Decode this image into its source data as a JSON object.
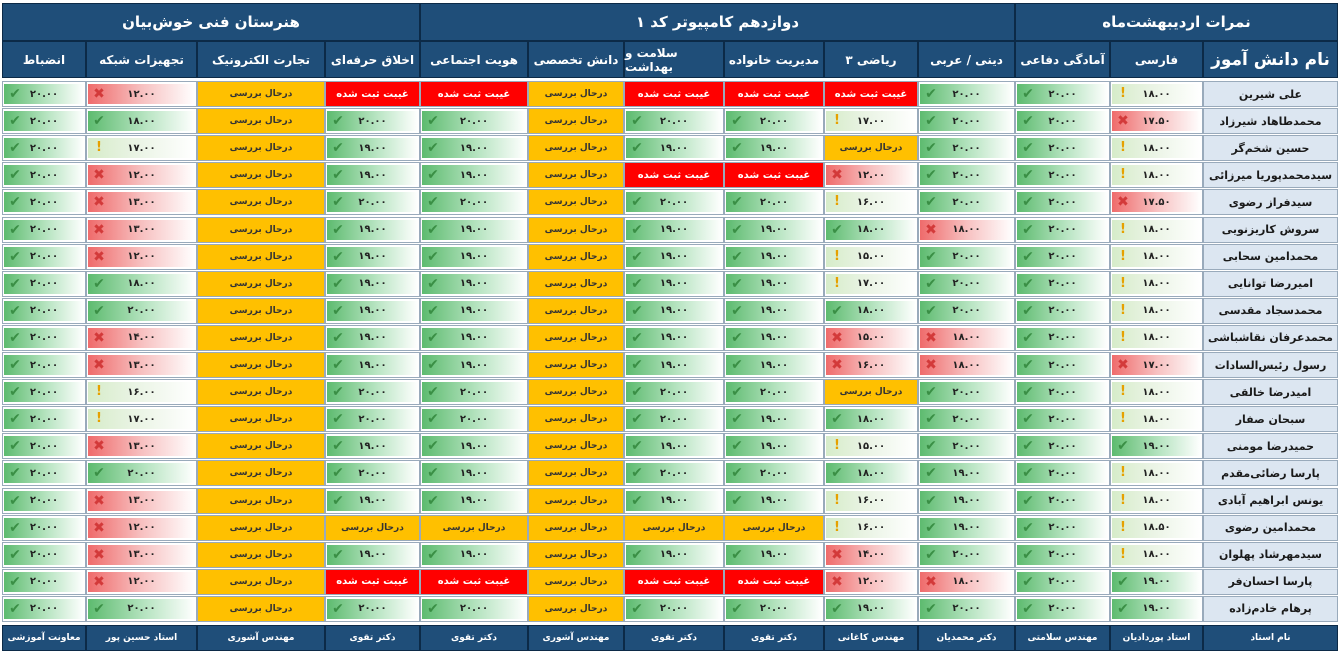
{
  "group_headers": [
    "نمرات اردیبهشت‌ماه",
    "دوازدهم کامپیوتر کد ۱",
    "هنرستان فنی خوش‌بیان"
  ],
  "name_header": "نام دانش آموز",
  "columns": [
    "فارسی",
    "آمادگی دفاعی",
    "دینی / عربی",
    "ریاضی ۳",
    "مدیریت خانواده",
    "سلامت و بهداشت",
    "دانش تخصصی",
    "هویت اجتماعی",
    "اخلاق حرفه‌ای",
    "تجارت الکترونیک",
    "تجهیزات شبکه",
    "انضباط"
  ],
  "teacher_label": "نام استاد",
  "teachers": [
    "استاد پوردادیان",
    "مهندس سلامتی",
    "دکتر محمدیان",
    "مهندس کاغانی",
    "دکتر تقوی",
    "دکتر تقوی",
    "مهندس آشوری",
    "دکتر تقوی",
    "دکتر تقوی",
    "مهندس آشوری",
    "استاد حسین پور",
    "معاونت آموزشی"
  ],
  "labels": {
    "pending": "درحال بررسی",
    "absent": "غیبت ثبت شده"
  },
  "icon_names": {
    "ok": "check-icon",
    "x": "x-icon",
    "w": "warning-icon"
  },
  "status_colors": {
    "pending": "#ffc000",
    "absent": "#ff0000",
    "good": "#5dbb6f",
    "bad": "#ef6b6b"
  },
  "students": [
    {
      "name": "علی شیرین",
      "g": [
        "۱۸.۰۰|w",
        "۲۰.۰۰|ok",
        "۲۰.۰۰|ok",
        "A",
        "A",
        "A",
        "P",
        "A",
        "A",
        "P",
        "۱۲.۰۰|x",
        "۲۰.۰۰|ok"
      ]
    },
    {
      "name": "محمدطاهاد شیرزاد",
      "g": [
        "۱۷.۵۰|x",
        "۲۰.۰۰|ok",
        "۲۰.۰۰|ok",
        "۱۷.۰۰|w",
        "۲۰.۰۰|ok",
        "۲۰.۰۰|ok",
        "P",
        "۲۰.۰۰|ok",
        "۲۰.۰۰|ok",
        "P",
        "۱۸.۰۰|ok",
        "۲۰.۰۰|ok"
      ]
    },
    {
      "name": "حسین شخم‌گر",
      "g": [
        "۱۸.۰۰|w",
        "۲۰.۰۰|ok",
        "۲۰.۰۰|ok",
        "P",
        "۱۹.۰۰|ok",
        "۱۹.۰۰|ok",
        "P",
        "۱۹.۰۰|ok",
        "۱۹.۰۰|ok",
        "P",
        "۱۷.۰۰|w",
        "۲۰.۰۰|ok"
      ]
    },
    {
      "name": "سیدمحمدپوریا میرزائی",
      "g": [
        "۱۸.۰۰|w",
        "۲۰.۰۰|ok",
        "۲۰.۰۰|ok",
        "۱۲.۰۰|x",
        "A",
        "A",
        "P",
        "۱۹.۰۰|ok",
        "۱۹.۰۰|ok",
        "P",
        "۱۲.۰۰|x",
        "۲۰.۰۰|ok"
      ]
    },
    {
      "name": "سیدفراز رضوی",
      "g": [
        "۱۷.۵۰|x",
        "۲۰.۰۰|ok",
        "۲۰.۰۰|ok",
        "۱۶.۰۰|w",
        "۲۰.۰۰|ok",
        "۲۰.۰۰|ok",
        "P",
        "۲۰.۰۰|ok",
        "۲۰.۰۰|ok",
        "P",
        "۱۳.۰۰|x",
        "۲۰.۰۰|ok"
      ]
    },
    {
      "name": "سروش کاریزنویی",
      "g": [
        "۱۸.۰۰|w",
        "۲۰.۰۰|ok",
        "۱۸.۰۰|x",
        "۱۸.۰۰|ok",
        "۱۹.۰۰|ok",
        "۱۹.۰۰|ok",
        "P",
        "۱۹.۰۰|ok",
        "۱۹.۰۰|ok",
        "P",
        "۱۳.۰۰|x",
        "۲۰.۰۰|ok"
      ]
    },
    {
      "name": "محمدامین سحابی",
      "g": [
        "۱۸.۰۰|w",
        "۲۰.۰۰|ok",
        "۲۰.۰۰|ok",
        "۱۵.۰۰|w",
        "۱۹.۰۰|ok",
        "۱۹.۰۰|ok",
        "P",
        "۱۹.۰۰|ok",
        "۱۹.۰۰|ok",
        "P",
        "۱۲.۰۰|x",
        "۲۰.۰۰|ok"
      ]
    },
    {
      "name": "امیررضا توانایی",
      "g": [
        "۱۸.۰۰|w",
        "۲۰.۰۰|ok",
        "۲۰.۰۰|ok",
        "۱۷.۰۰|w",
        "۱۹.۰۰|ok",
        "۱۹.۰۰|ok",
        "P",
        "۱۹.۰۰|ok",
        "۱۹.۰۰|ok",
        "P",
        "۱۸.۰۰|ok",
        "۲۰.۰۰|ok"
      ]
    },
    {
      "name": "محمدسجاد مقدسی",
      "g": [
        "۱۸.۰۰|w",
        "۲۰.۰۰|ok",
        "۲۰.۰۰|ok",
        "۱۸.۰۰|ok",
        "۱۹.۰۰|ok",
        "۱۹.۰۰|ok",
        "P",
        "۱۹.۰۰|ok",
        "۱۹.۰۰|ok",
        "P",
        "۲۰.۰۰|ok",
        "۲۰.۰۰|ok"
      ]
    },
    {
      "name": "محمدعرفان نقاشباشی",
      "g": [
        "۱۸.۰۰|w",
        "۲۰.۰۰|ok",
        "۱۸.۰۰|x",
        "۱۵.۰۰|x",
        "۱۹.۰۰|ok",
        "۱۹.۰۰|ok",
        "P",
        "۱۹.۰۰|ok",
        "۱۹.۰۰|ok",
        "P",
        "۱۴.۰۰|x",
        "۲۰.۰۰|ok"
      ]
    },
    {
      "name": "رسول رئیس‌السادات",
      "g": [
        "۱۷.۰۰|x",
        "۲۰.۰۰|ok",
        "۱۸.۰۰|x",
        "۱۶.۰۰|x",
        "۱۹.۰۰|ok",
        "۱۹.۰۰|ok",
        "P",
        "۱۹.۰۰|ok",
        "۱۹.۰۰|ok",
        "P",
        "۱۳.۰۰|x",
        "۲۰.۰۰|ok"
      ]
    },
    {
      "name": "امیدرضا خالقی",
      "g": [
        "۱۸.۰۰|w",
        "۲۰.۰۰|ok",
        "۲۰.۰۰|ok",
        "P",
        "۲۰.۰۰|ok",
        "۲۰.۰۰|ok",
        "P",
        "۲۰.۰۰|ok",
        "۲۰.۰۰|ok",
        "P",
        "۱۶.۰۰|w",
        "۲۰.۰۰|ok"
      ]
    },
    {
      "name": "سبحان صفار",
      "g": [
        "۱۸.۰۰|w",
        "۲۰.۰۰|ok",
        "۲۰.۰۰|ok",
        "۱۸.۰۰|ok",
        "۱۹.۰۰|ok",
        "۲۰.۰۰|ok",
        "P",
        "۲۰.۰۰|ok",
        "۲۰.۰۰|ok",
        "P",
        "۱۷.۰۰|w",
        "۲۰.۰۰|ok"
      ]
    },
    {
      "name": "حمیدرضا مومنی",
      "g": [
        "۱۹.۰۰|ok",
        "۲۰.۰۰|ok",
        "۲۰.۰۰|ok",
        "۱۵.۰۰|w",
        "۱۹.۰۰|ok",
        "۱۹.۰۰|ok",
        "P",
        "۱۹.۰۰|ok",
        "۱۹.۰۰|ok",
        "P",
        "۱۳.۰۰|x",
        "۲۰.۰۰|ok"
      ]
    },
    {
      "name": "پارسا رضائی‌مقدم",
      "g": [
        "۱۸.۰۰|w",
        "۲۰.۰۰|ok",
        "۱۹.۰۰|ok",
        "۱۸.۰۰|ok",
        "۲۰.۰۰|ok",
        "۲۰.۰۰|ok",
        "P",
        "۱۹.۰۰|ok",
        "۲۰.۰۰|ok",
        "P",
        "۲۰.۰۰|ok",
        "۲۰.۰۰|ok"
      ]
    },
    {
      "name": "یونس ابراهیم آبادی",
      "g": [
        "۱۸.۰۰|w",
        "۲۰.۰۰|ok",
        "۱۹.۰۰|ok",
        "۱۶.۰۰|w",
        "۱۹.۰۰|ok",
        "۱۹.۰۰|ok",
        "P",
        "۱۹.۰۰|ok",
        "۱۹.۰۰|ok",
        "P",
        "۱۳.۰۰|x",
        "۲۰.۰۰|ok"
      ]
    },
    {
      "name": "محمدامین رضوی",
      "g": [
        "۱۸.۵۰|w",
        "۲۰.۰۰|ok",
        "۱۹.۰۰|ok",
        "۱۶.۰۰|w",
        "P",
        "P",
        "P",
        "P",
        "P",
        "P",
        "۱۲.۰۰|x",
        "۲۰.۰۰|ok"
      ]
    },
    {
      "name": "سیدمهرشاد پهلوان",
      "g": [
        "۱۸.۰۰|w",
        "۲۰.۰۰|ok",
        "۲۰.۰۰|ok",
        "۱۴.۰۰|x",
        "۱۹.۰۰|ok",
        "۱۹.۰۰|ok",
        "P",
        "۱۹.۰۰|ok",
        "۱۹.۰۰|ok",
        "P",
        "۱۳.۰۰|x",
        "۲۰.۰۰|ok"
      ]
    },
    {
      "name": "پارسا احسان‌فر",
      "g": [
        "۱۹.۰۰|ok",
        "۲۰.۰۰|ok",
        "۱۸.۰۰|x",
        "۱۲.۰۰|x",
        "A",
        "A",
        "P",
        "A",
        "A",
        "P",
        "۱۲.۰۰|x",
        "۲۰.۰۰|ok"
      ]
    },
    {
      "name": "پرهام خادم‌زاده",
      "g": [
        "۱۹.۰۰|ok",
        "۲۰.۰۰|ok",
        "۲۰.۰۰|ok",
        "۱۹.۰۰|ok",
        "۲۰.۰۰|ok",
        "۲۰.۰۰|ok",
        "P",
        "۲۰.۰۰|ok",
        "۲۰.۰۰|ok",
        "P",
        "۲۰.۰۰|ok",
        "۲۰.۰۰|ok"
      ]
    }
  ]
}
